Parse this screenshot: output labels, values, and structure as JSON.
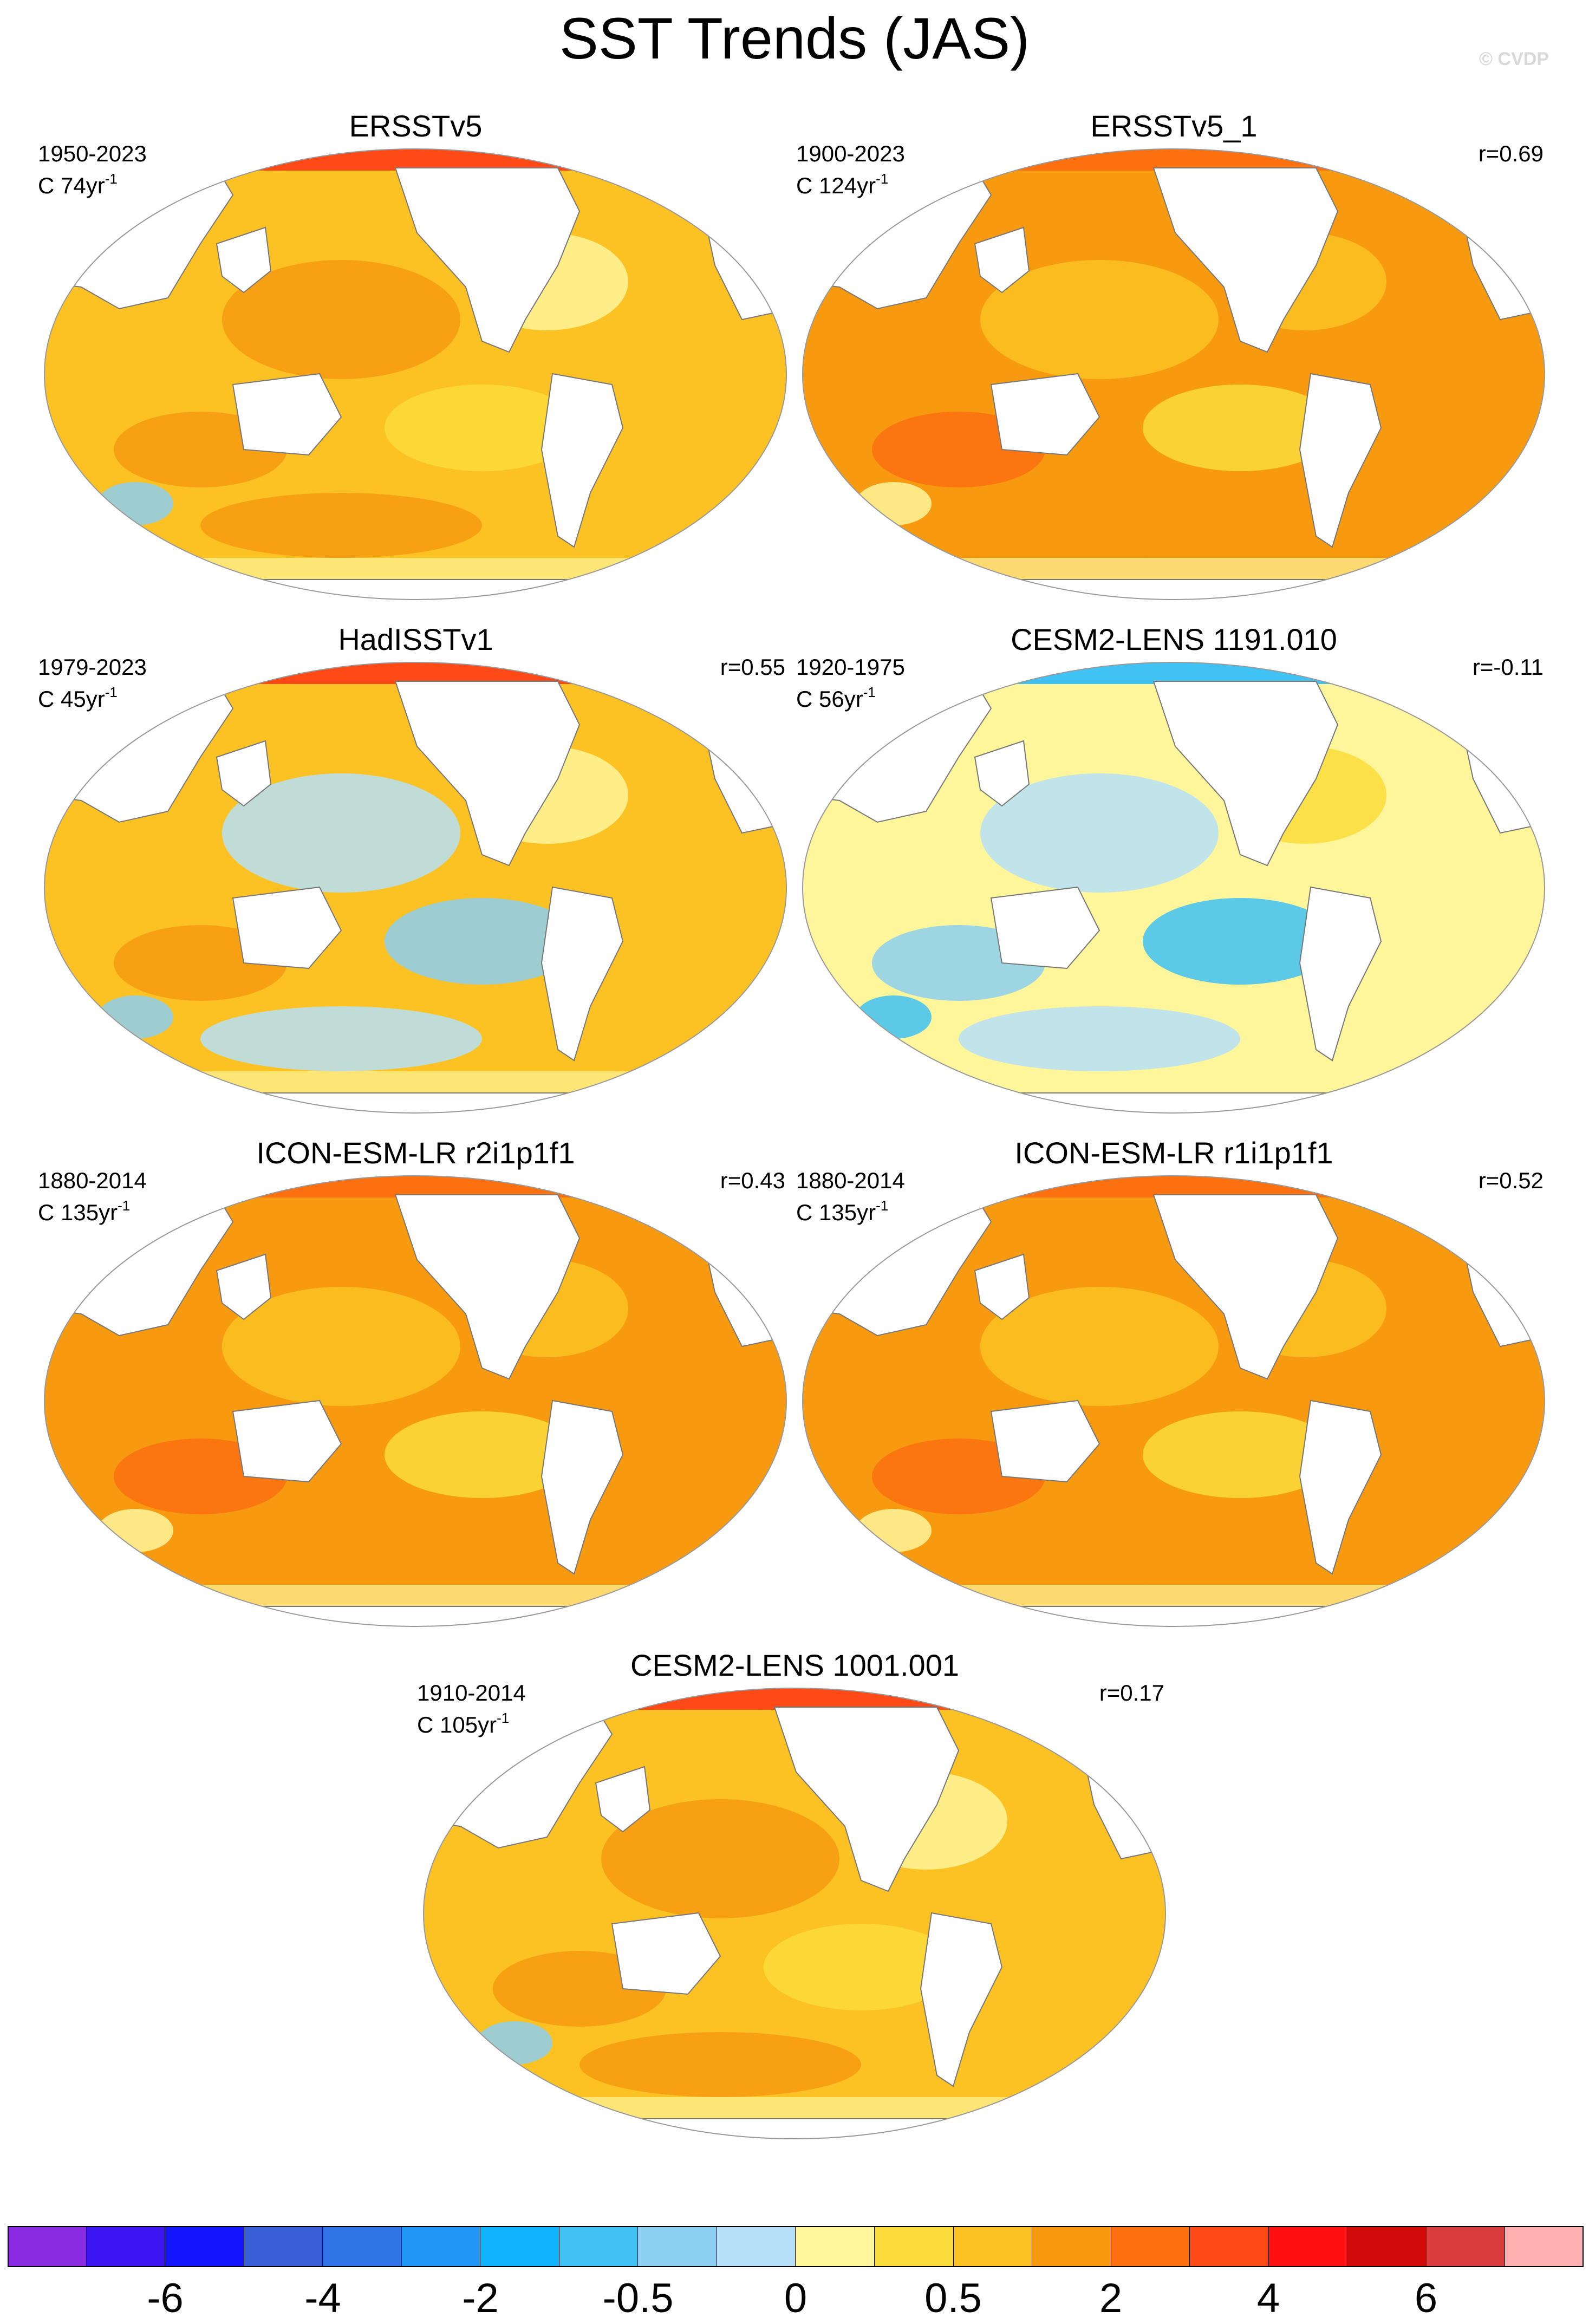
{
  "title": "SST Trends (JAS)",
  "copyright": "© CVDP",
  "panels": [
    {
      "title": "ERSSTv5",
      "period": "1950-2023",
      "unit_prefix": "C 74yr",
      "unit_exp": "-1",
      "corr": "",
      "pattern": "warm"
    },
    {
      "title": "ERSSTv5_1",
      "period": "1900-2023",
      "unit_prefix": "C 124yr",
      "unit_exp": "-1",
      "corr": "r=0.69",
      "pattern": "warmer"
    },
    {
      "title": "HadISSTv1",
      "period": "1979-2023",
      "unit_prefix": "C 45yr",
      "unit_exp": "-1",
      "corr": "r=0.55",
      "pattern": "mixed"
    },
    {
      "title": "CESM2-LENS 1191.010",
      "period": "1920-1975",
      "unit_prefix": "C 56yr",
      "unit_exp": "-1",
      "corr": "r=-0.11",
      "pattern": "cool"
    },
    {
      "title": "ICON-ESM-LR r2i1p1f1",
      "period": "1880-2014",
      "unit_prefix": "C 135yr",
      "unit_exp": "-1",
      "corr": "r=0.43",
      "pattern": "warmer"
    },
    {
      "title": "ICON-ESM-LR r1i1p1f1",
      "period": "1880-2014",
      "unit_prefix": "C 135yr",
      "unit_exp": "-1",
      "corr": "r=0.52",
      "pattern": "warmer"
    },
    {
      "title": "CESM2-LENS 1001.001",
      "period": "1910-2014",
      "unit_prefix": "C 105yr",
      "unit_exp": "-1",
      "corr": "r=0.17",
      "pattern": "warm"
    }
  ],
  "colorbar": {
    "colors": [
      "#8a2be2",
      "#3b16f0",
      "#1414ff",
      "#3a5ed6",
      "#2f73e6",
      "#2096f5",
      "#10b4ff",
      "#40c2f5",
      "#8ccff0",
      "#b5e0f7",
      "#fff59a",
      "#fbdc3a",
      "#fcc223",
      "#f79a10",
      "#fc7010",
      "#ff4a18",
      "#ff0f0f",
      "#d20a0a",
      "#d83c3c",
      "#ffb0b0"
    ],
    "labels": [
      "-6",
      "-4",
      "-2",
      "-0.5",
      "0",
      "0.5",
      "2",
      "4",
      "6"
    ]
  },
  "legend_colors": {
    "land": "#ffffff",
    "coast": "#777777",
    "ocean_frame": "#999999"
  }
}
